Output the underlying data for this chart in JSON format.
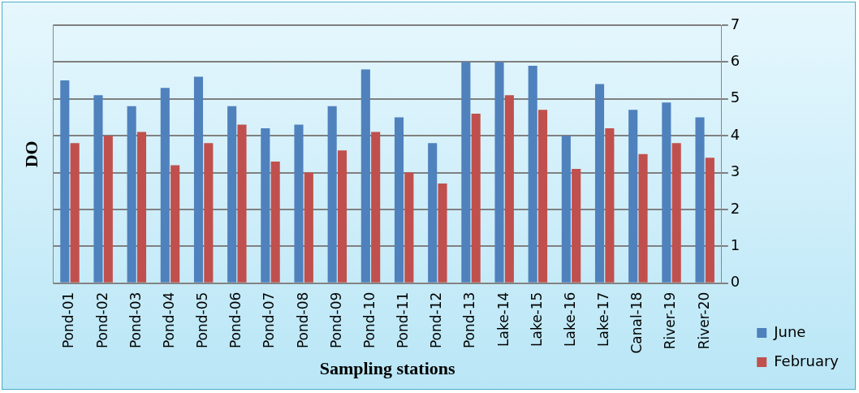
{
  "chart_data": {
    "type": "bar",
    "xlabel": "Sampling stations",
    "ylabel": "DO",
    "categories": [
      "Pond-01",
      "Pond-02",
      "Pond-03",
      "Pond-04",
      "Pond-05",
      "Pond-06",
      "Pond-07",
      "Pond-08",
      "Pond-09",
      "Pond-10",
      "Pond-11",
      "Pond-12",
      "Pond-13",
      "Lake-14",
      "Lake-15",
      "Lake-16",
      "Lake-17",
      "Canal-18",
      "River-19",
      "River-20"
    ],
    "series": [
      {
        "name": "June",
        "color": "#4f81bd",
        "values": [
          5.5,
          5.1,
          4.8,
          5.3,
          5.6,
          4.8,
          4.2,
          4.3,
          4.8,
          5.8,
          4.5,
          3.8,
          6.0,
          6.0,
          5.9,
          4.0,
          5.4,
          4.7,
          4.9,
          4.5
        ]
      },
      {
        "name": "February",
        "color": "#c0504d",
        "values": [
          3.8,
          4.0,
          4.1,
          3.2,
          3.8,
          4.3,
          3.3,
          3.0,
          3.6,
          4.1,
          3.0,
          2.7,
          4.6,
          5.1,
          4.7,
          3.1,
          4.2,
          3.5,
          3.8,
          3.4
        ]
      }
    ],
    "ylim": [
      0,
      7
    ],
    "yticks": [
      0,
      1,
      2,
      3,
      4,
      5,
      6,
      7
    ],
    "grid": "y",
    "legend": "right"
  }
}
